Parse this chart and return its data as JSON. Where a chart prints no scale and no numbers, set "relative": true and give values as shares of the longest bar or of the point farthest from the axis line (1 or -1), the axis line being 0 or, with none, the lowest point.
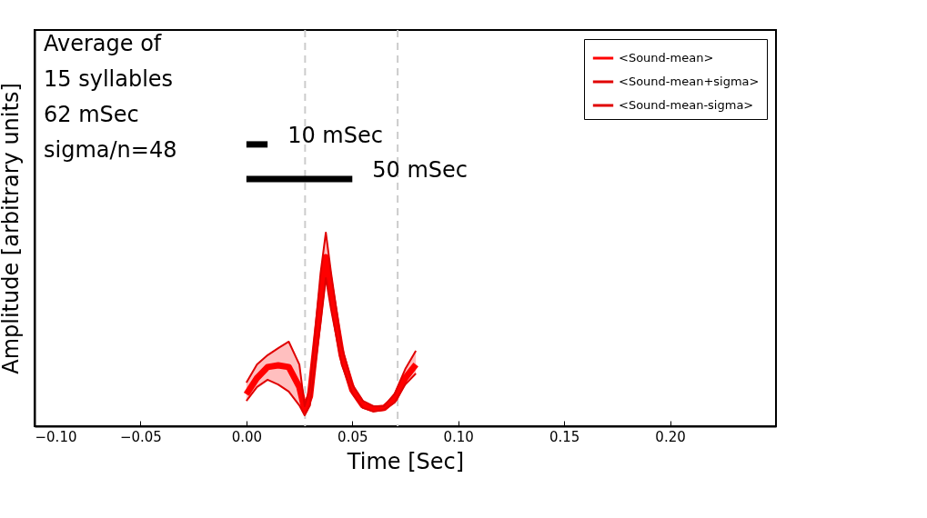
{
  "chart_data": {
    "type": "line",
    "relative": true,
    "xlabel": "Time [Sec]",
    "ylabel": "Amplitude [arbitrary units]",
    "xlim": [
      -0.1,
      0.25
    ],
    "xticks": [
      {
        "value": -0.1,
        "label": "−0.10"
      },
      {
        "value": -0.05,
        "label": "−0.05"
      },
      {
        "value": 0,
        "label": "0.00"
      },
      {
        "value": 0.05,
        "label": "0.05"
      },
      {
        "value": 0.1,
        "label": "0.10"
      },
      {
        "value": 0.15,
        "label": "0.15"
      },
      {
        "value": 0.2,
        "label": "0.20"
      }
    ],
    "tick_labels": "x",
    "grid": false,
    "legend": "top right",
    "x": [
      0,
      0.005,
      0.01,
      0.015,
      0.02,
      0.025,
      0.0275,
      0.03,
      0.035,
      0.0375,
      0.04,
      0.045,
      0.05,
      0.055,
      0.06,
      0.065,
      0.07,
      0.075,
      0.08
    ],
    "series": [
      {
        "name": "<Sound-mean>",
        "color": "#ff0000",
        "values": [
          0.113,
          0.171,
          0.21,
          0.216,
          0.21,
          0.139,
          0.058,
          0.106,
          0.445,
          0.6,
          0.477,
          0.252,
          0.129,
          0.074,
          0.061,
          0.065,
          0.097,
          0.171,
          0.219
        ],
        "lower": [
          0.09,
          0.139,
          0.165,
          0.148,
          0.123,
          0.074,
          0.039,
          0.074,
          0.365,
          0.526,
          0.413,
          0.219,
          0.116,
          0.065,
          0.052,
          0.058,
          0.084,
          0.148,
          0.187
        ],
        "upper": [
          0.155,
          0.219,
          0.252,
          0.277,
          0.3,
          0.219,
          0.071,
          0.139,
          0.542,
          0.687,
          0.542,
          0.284,
          0.148,
          0.09,
          0.071,
          0.071,
          0.116,
          0.203,
          0.268
        ]
      },
      {
        "name": "<Sound-mean+sigma>",
        "color": "#e00000",
        "values": [
          0.155,
          0.219,
          0.252,
          0.277,
          0.3,
          0.219,
          0.071,
          0.139,
          0.542,
          0.687,
          0.542,
          0.284,
          0.148,
          0.09,
          0.071,
          0.071,
          0.116,
          0.203,
          0.268
        ]
      },
      {
        "name": "<Sound-mean-sigma>",
        "color": "#e00000",
        "values": [
          0.09,
          0.139,
          0.165,
          0.148,
          0.123,
          0.074,
          0.039,
          0.074,
          0.365,
          0.526,
          0.413,
          0.219,
          0.116,
          0.065,
          0.052,
          0.058,
          0.084,
          0.148,
          0.187
        ]
      },
      {
        "color": "#000000",
        "x": [
          0,
          0.01
        ],
        "values": [
          1,
          1
        ]
      },
      {
        "color": "#000000",
        "x": [
          0,
          0.05
        ],
        "values": [
          0.877,
          0.877
        ]
      }
    ],
    "ref_lines": [
      {
        "axis": "x",
        "value": 0.0277,
        "color": "#cccccc",
        "line_style": "dashed"
      },
      {
        "axis": "x",
        "value": 0.0714,
        "color": "#cccccc",
        "line_style": "dashed"
      }
    ],
    "annotations": [
      " Average of",
      " 15 syllables",
      "62 mSec",
      "sigma/n=48",
      {
        "text": "10 mSec",
        "x": 0.01,
        "y": 1
      },
      {
        "text": "50 mSec",
        "x": 0.05,
        "y": 0.877
      }
    ]
  }
}
